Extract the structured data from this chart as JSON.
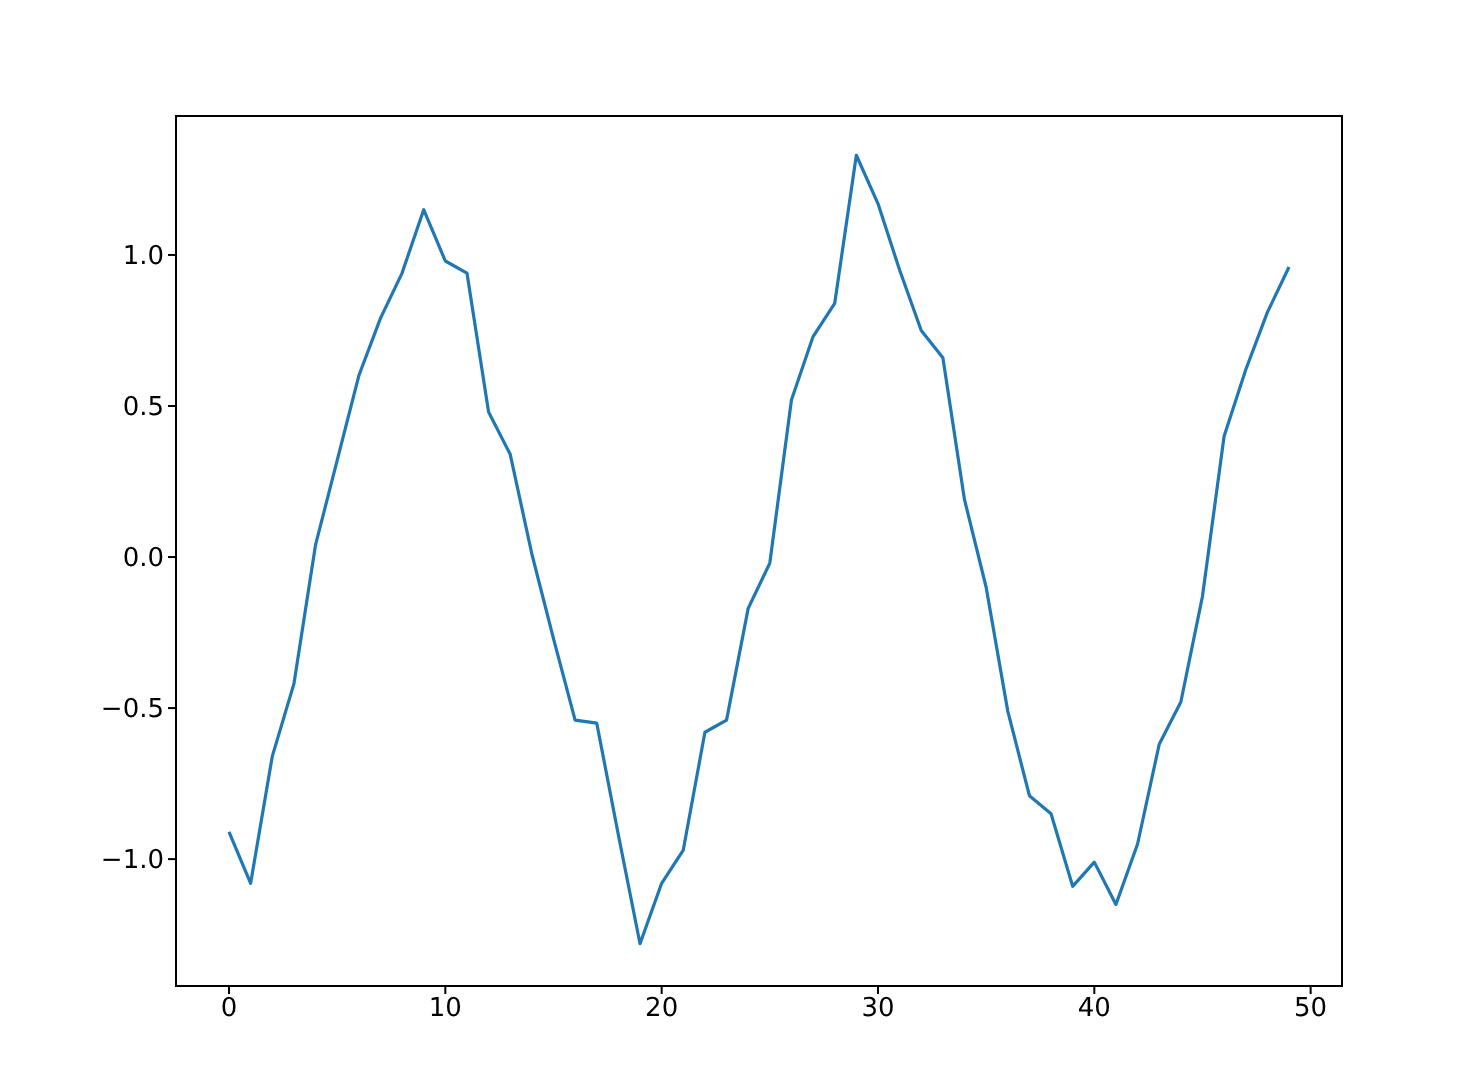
{
  "chart_data": {
    "type": "line",
    "x": [
      0,
      1,
      2,
      3,
      4,
      5,
      6,
      7,
      8,
      9,
      10,
      11,
      12,
      13,
      14,
      15,
      16,
      17,
      18,
      19,
      20,
      21,
      22,
      23,
      24,
      25,
      26,
      27,
      28,
      29,
      30,
      31,
      32,
      33,
      34,
      35,
      36,
      37,
      38,
      39,
      40,
      41,
      42,
      43,
      44,
      45,
      46,
      47,
      48,
      49
    ],
    "series": [
      {
        "color": "#1f77b4",
        "values": [
          -0.91,
          -1.08,
          -0.66,
          -0.42,
          0.04,
          0.32,
          0.6,
          0.79,
          0.94,
          1.15,
          0.98,
          0.94,
          0.48,
          0.34,
          0.01,
          -0.27,
          -0.54,
          -0.55,
          -0.92,
          -1.28,
          -1.08,
          -0.97,
          -0.58,
          -0.54,
          -0.17,
          -0.02,
          0.52,
          0.73,
          0.84,
          1.33,
          1.17,
          0.95,
          0.75,
          0.66,
          0.19,
          -0.1,
          -0.51,
          -0.79,
          -0.85,
          -1.09,
          -1.01,
          -1.15,
          -0.95,
          -0.62,
          -0.48,
          -0.13,
          0.4,
          0.62,
          0.81,
          0.96
        ]
      }
    ],
    "xlim": [
      -2.45,
      51.45
    ],
    "xticks": [
      0,
      10,
      20,
      30,
      40,
      50
    ],
    "ylim": [
      -1.42,
      1.46
    ],
    "yticks": [
      {
        "value": -1,
        "label": "−1.0"
      },
      {
        "value": -0.5,
        "label": "−0.5"
      },
      {
        "value": 0,
        "label": "0.0"
      },
      {
        "value": 0.5,
        "label": "0.5"
      },
      {
        "value": 1,
        "label": "1.0"
      }
    ],
    "grid": false,
    "legend": false,
    "marker": "none",
    "line_style": "solid"
  }
}
